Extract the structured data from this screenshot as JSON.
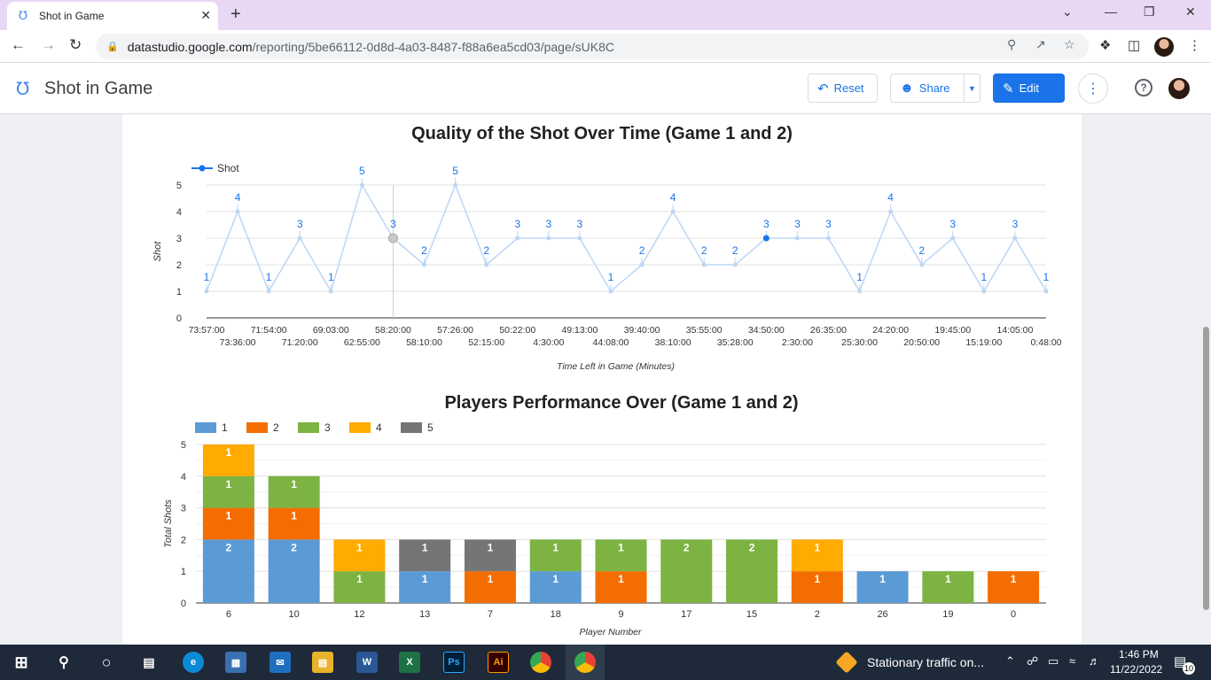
{
  "browser": {
    "tab_title": "Shot in Game",
    "url_host": "datastudio.google.com",
    "url_path": "/reporting/5be66112-0d8d-4a03-8487-f88a6ea5cd03/page/sUK8C"
  },
  "app": {
    "title": "Shot in Game",
    "reset_label": "Reset",
    "share_label": "Share",
    "edit_label": "Edit"
  },
  "chart_data": [
    {
      "type": "line",
      "title": "Quality of the Shot Over Time (Game 1 and 2)",
      "xlabel": "Time Left in Game (Minutes)",
      "ylabel": "Shot",
      "ylim": [
        0,
        5
      ],
      "yticks": [
        "0",
        "1",
        "2",
        "3",
        "4",
        "5"
      ],
      "legend_placement": "top-left",
      "series": [
        {
          "name": "Shot",
          "color": "#1a73e8",
          "x": [
            "73:57:00",
            "73:36:00",
            "71:54:00",
            "71:20:00",
            "69:03:00",
            "62:55:00",
            "58:20:00",
            "58:10:00",
            "57:26:00",
            "52:15:00",
            "50:22:00",
            "4:30:00",
            "49:13:00",
            "44:08:00",
            "39:40:00",
            "38:10:00",
            "35:55:00",
            "35:28:00",
            "34:50:00",
            "2:30:00",
            "26:35:00",
            "25:30:00",
            "24:20:00",
            "20:50:00",
            "19:45:00",
            "15:19:00",
            "14:05:00",
            "0:48:00"
          ],
          "values": [
            1,
            4,
            1,
            3,
            1,
            5,
            3,
            2,
            5,
            2,
            3,
            3,
            3,
            1,
            2,
            4,
            2,
            2,
            3,
            3,
            3,
            1,
            4,
            2,
            3,
            1,
            3,
            1
          ]
        }
      ],
      "grid": true
    },
    {
      "type": "bar",
      "stacked": true,
      "title": "Players Performance Over (Game 1 and 2)",
      "xlabel": "Player Number",
      "ylabel": "Total Shots",
      "ylim": [
        0,
        5
      ],
      "yticks": [
        "0",
        "1",
        "2",
        "3",
        "4",
        "5"
      ],
      "legend_placement": "top-left",
      "categories": [
        "6",
        "10",
        "12",
        "13",
        "7",
        "18",
        "9",
        "17",
        "15",
        "2",
        "26",
        "19",
        "0"
      ],
      "series": [
        {
          "name": "1",
          "color": "#5b9bd5",
          "values": [
            2,
            2,
            0,
            1,
            0,
            1,
            0,
            0,
            0,
            0,
            1,
            0,
            0
          ]
        },
        {
          "name": "2",
          "color": "#f46d00",
          "values": [
            1,
            1,
            0,
            0,
            1,
            0,
            1,
            0,
            0,
            1,
            0,
            0,
            1
          ]
        },
        {
          "name": "3",
          "color": "#7cb342",
          "values": [
            1,
            1,
            1,
            0,
            0,
            1,
            1,
            2,
            2,
            0,
            0,
            1,
            0
          ]
        },
        {
          "name": "4",
          "color": "#ffab00",
          "values": [
            1,
            0,
            1,
            0,
            0,
            0,
            0,
            0,
            0,
            1,
            0,
            0,
            0
          ]
        },
        {
          "name": "5",
          "color": "#757575",
          "values": [
            0,
            0,
            0,
            1,
            1,
            0,
            0,
            0,
            0,
            0,
            0,
            0,
            0
          ]
        }
      ],
      "grid": true
    }
  ],
  "taskbar": {
    "weather_text": "Stationary traffic on...",
    "time": "1:46 PM",
    "date": "11/22/2022",
    "notifications": "10"
  }
}
